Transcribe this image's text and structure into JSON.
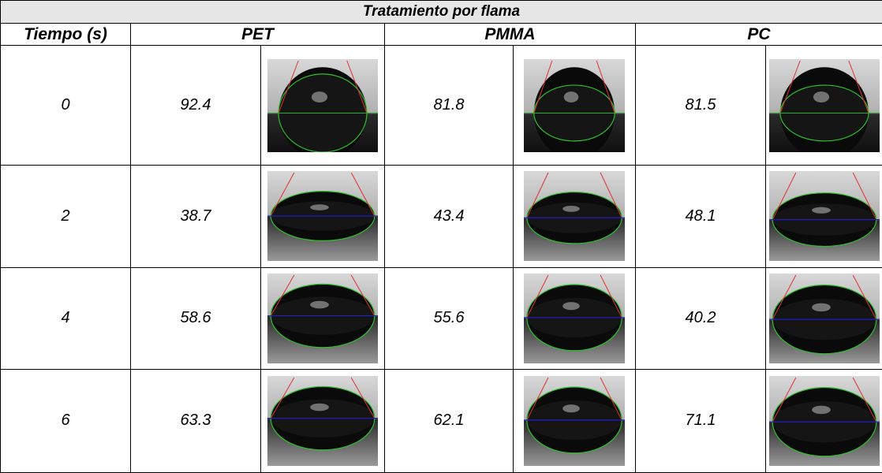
{
  "table": {
    "title": "Tratamiento por flama",
    "headers": [
      "Tiempo (s)",
      "PET",
      "PMMA",
      "PC"
    ],
    "rows": [
      [
        "0",
        "92.4",
        "81.8",
        "81.5"
      ],
      [
        "2",
        "38.7",
        "43.4",
        "48.1"
      ],
      [
        "4",
        "58.6",
        "55.6",
        "40.2"
      ],
      [
        "6",
        "63.3",
        "62.1",
        "71.1"
      ]
    ]
  }
}
